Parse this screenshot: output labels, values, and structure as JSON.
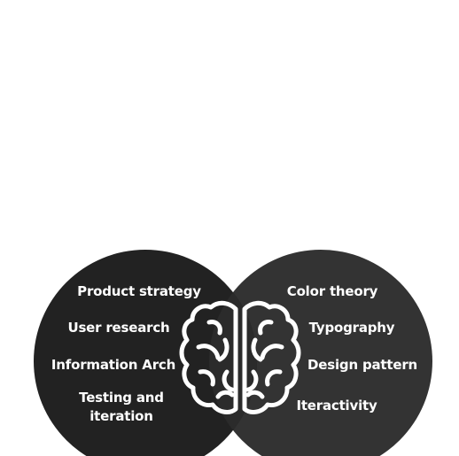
{
  "diagram": {
    "left_circle": {
      "color": "#222222",
      "items": [
        "Product strategy",
        "User research",
        "Information Arch",
        "Testing and iteration"
      ]
    },
    "right_circle": {
      "color": "#333333",
      "items": [
        "Color theory",
        "Typography",
        "Design pattern",
        "Iteractivity"
      ]
    },
    "center_icon": "brain-icon",
    "text_color": "#ffffff"
  }
}
